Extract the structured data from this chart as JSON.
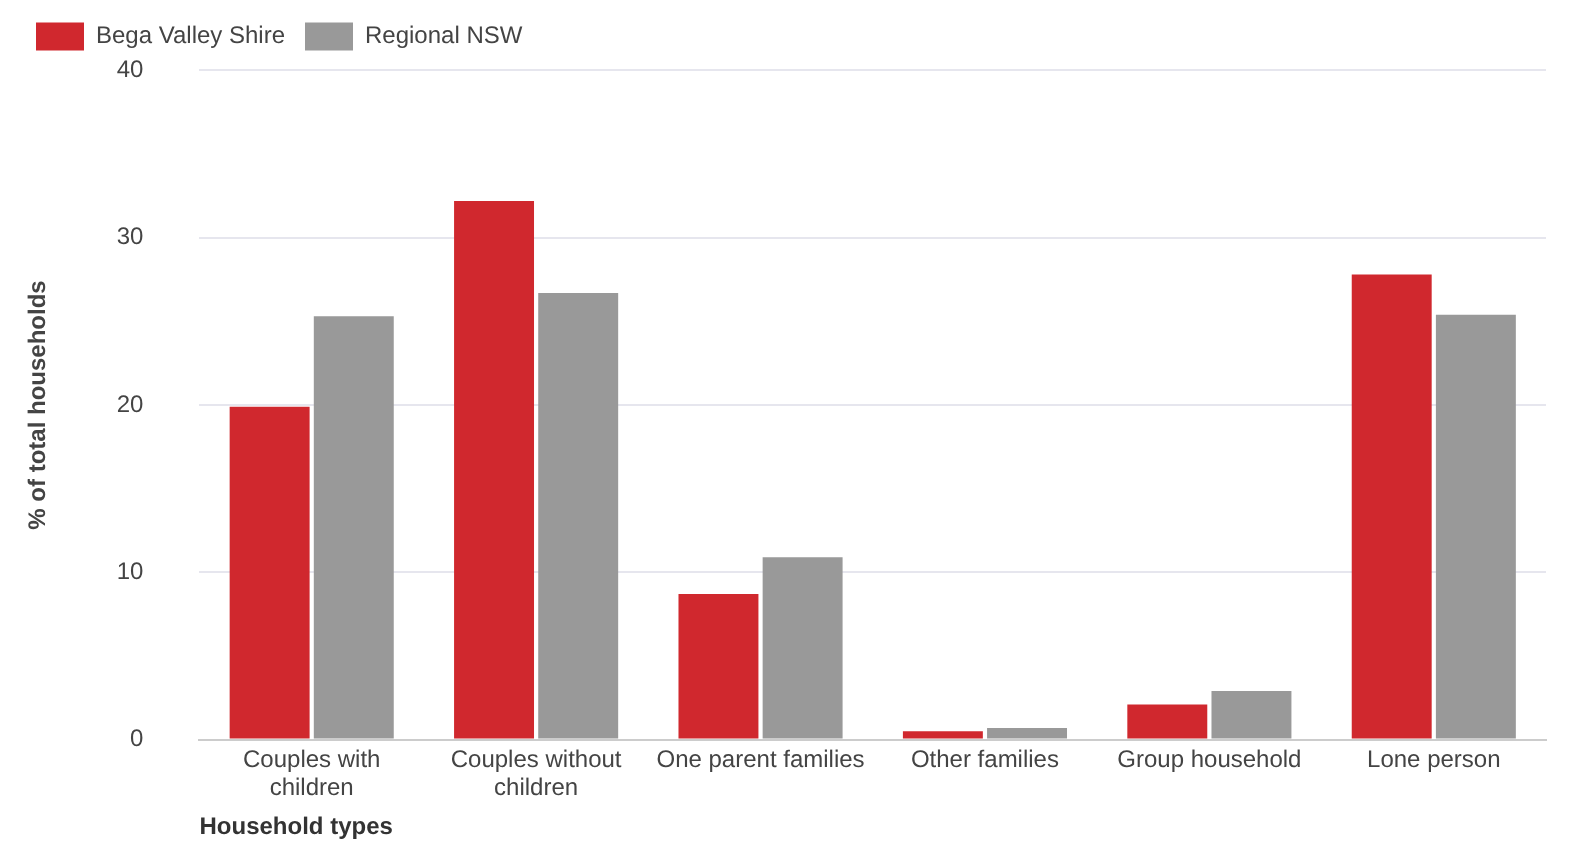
{
  "chart_data": {
    "type": "bar",
    "xlabel": "Household types",
    "ylabel": "% of total households",
    "categories": [
      "Couples with children",
      "Couples without children",
      "One parent families",
      "Other families",
      "Group household",
      "Lone person"
    ],
    "series": [
      {
        "name": "Bega Valley Shire",
        "color": "#d0282e",
        "values": [
          19.9,
          32.2,
          8.7,
          0.5,
          2.1,
          27.8
        ]
      },
      {
        "name": "Regional NSW",
        "color": "#999999",
        "values": [
          25.3,
          26.7,
          10.9,
          0.7,
          2.9,
          25.4
        ]
      }
    ],
    "ylim": [
      0,
      40
    ],
    "yticks": [
      0,
      10,
      20,
      30,
      40
    ],
    "grid": "y",
    "legend": "top left"
  }
}
